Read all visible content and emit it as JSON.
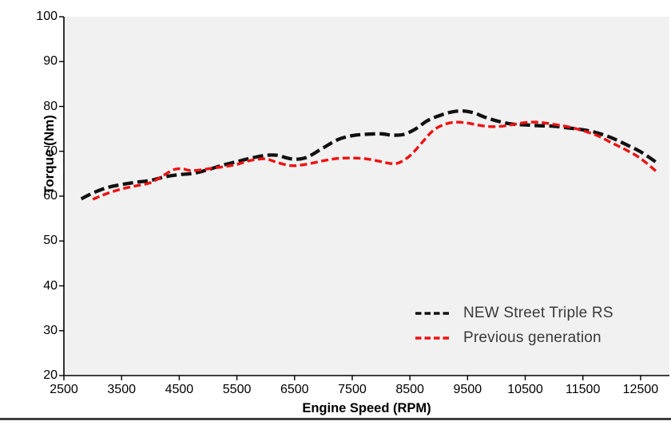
{
  "page": {
    "bg_color": "#ffffff",
    "bottom_rule_color": "#3e3e3e"
  },
  "chart_data": {
    "type": "line",
    "title": "",
    "xlabel": "Engine Speed (RPM)",
    "ylabel": "Torque (Nm)",
    "xlim": [
      2500,
      13000
    ],
    "ylim": [
      20,
      100
    ],
    "x_ticks": [
      2500,
      3500,
      4500,
      5500,
      6500,
      7500,
      8500,
      9500,
      10500,
      11500,
      12500
    ],
    "y_ticks": [
      20,
      30,
      40,
      50,
      60,
      70,
      80,
      90,
      100
    ],
    "grid": false,
    "plot_bg": "#f1f1f1",
    "axis_color": "#000000",
    "tick_label_color": "#000000",
    "legend_position": "inside-bottom-right",
    "legend_text_color": "#3a3a3a",
    "series": [
      {
        "name": "NEW Street Triple RS",
        "color": "#111111",
        "dash": [
          13,
          5.5
        ],
        "width": 4.3,
        "points": [
          [
            2800,
            59.4
          ],
          [
            3000,
            60.7
          ],
          [
            3250,
            61.9
          ],
          [
            3500,
            62.6
          ],
          [
            3750,
            63.1
          ],
          [
            4000,
            63.5
          ],
          [
            4250,
            64.3
          ],
          [
            4500,
            64.8
          ],
          [
            4750,
            65.1
          ],
          [
            5000,
            65.9
          ],
          [
            5250,
            66.9
          ],
          [
            5500,
            67.7
          ],
          [
            5750,
            68.5
          ],
          [
            6000,
            69.1
          ],
          [
            6200,
            69.1
          ],
          [
            6450,
            68.3
          ],
          [
            6700,
            68.6
          ],
          [
            7000,
            70.8
          ],
          [
            7250,
            72.6
          ],
          [
            7500,
            73.5
          ],
          [
            7750,
            73.8
          ],
          [
            8000,
            73.9
          ],
          [
            8200,
            73.6
          ],
          [
            8400,
            73.8
          ],
          [
            8600,
            75.0
          ],
          [
            8800,
            76.8
          ],
          [
            9000,
            77.9
          ],
          [
            9200,
            78.7
          ],
          [
            9400,
            79.0
          ],
          [
            9600,
            78.6
          ],
          [
            9800,
            77.6
          ],
          [
            10000,
            76.8
          ],
          [
            10250,
            76.1
          ],
          [
            10500,
            75.9
          ],
          [
            10750,
            75.7
          ],
          [
            11000,
            75.6
          ],
          [
            11250,
            75.2
          ],
          [
            11500,
            74.8
          ],
          [
            11750,
            74.1
          ],
          [
            12000,
            73.0
          ],
          [
            12250,
            71.5
          ],
          [
            12500,
            69.9
          ],
          [
            12800,
            67.3
          ]
        ]
      },
      {
        "name": "Previous generation",
        "color": "#ee1111",
        "dash": [
          9,
          4.5
        ],
        "width": 3.4,
        "points": [
          [
            3000,
            59.3
          ],
          [
            3250,
            60.6
          ],
          [
            3500,
            61.6
          ],
          [
            3750,
            62.3
          ],
          [
            4000,
            63.0
          ],
          [
            4200,
            64.4
          ],
          [
            4400,
            65.9
          ],
          [
            4550,
            66.1
          ],
          [
            4700,
            65.7
          ],
          [
            4900,
            65.9
          ],
          [
            5100,
            66.3
          ],
          [
            5300,
            66.6
          ],
          [
            5500,
            67.1
          ],
          [
            5750,
            68.0
          ],
          [
            6000,
            68.3
          ],
          [
            6200,
            67.5
          ],
          [
            6450,
            66.8
          ],
          [
            6700,
            67.1
          ],
          [
            7000,
            67.9
          ],
          [
            7250,
            68.4
          ],
          [
            7500,
            68.5
          ],
          [
            7750,
            68.3
          ],
          [
            8000,
            67.7
          ],
          [
            8150,
            67.3
          ],
          [
            8300,
            67.4
          ],
          [
            8500,
            69.0
          ],
          [
            8700,
            71.8
          ],
          [
            8900,
            74.6
          ],
          [
            9100,
            76.0
          ],
          [
            9300,
            76.5
          ],
          [
            9500,
            76.3
          ],
          [
            9700,
            75.8
          ],
          [
            9900,
            75.5
          ],
          [
            10100,
            75.6
          ],
          [
            10300,
            76.0
          ],
          [
            10500,
            76.4
          ],
          [
            10700,
            76.5
          ],
          [
            10900,
            76.2
          ],
          [
            11100,
            75.8
          ],
          [
            11300,
            75.3
          ],
          [
            11500,
            74.6
          ],
          [
            11750,
            73.5
          ],
          [
            12000,
            71.9
          ],
          [
            12250,
            70.3
          ],
          [
            12500,
            68.4
          ],
          [
            12800,
            65.2
          ]
        ]
      }
    ]
  }
}
